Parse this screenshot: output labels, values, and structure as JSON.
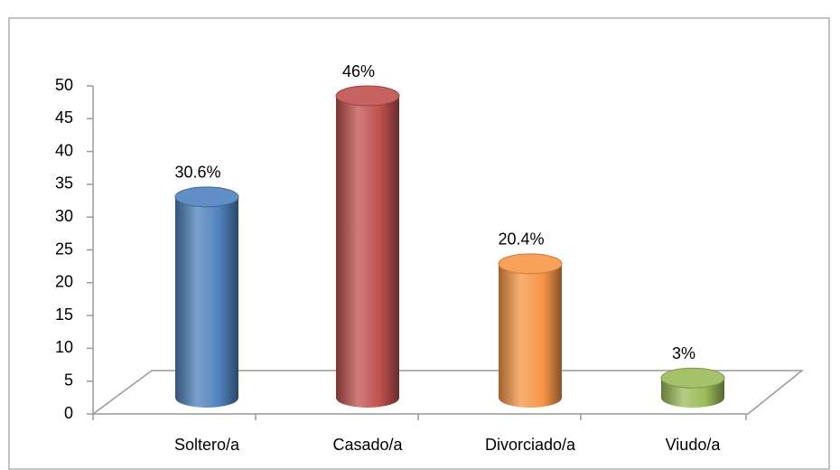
{
  "chart_data": {
    "type": "bar",
    "categories": [
      "Soltero/a",
      "Casado/a",
      "Divorciado/a",
      "Viudo/a"
    ],
    "values": [
      30.6,
      46,
      20.4,
      3
    ],
    "value_labels": [
      "30.6%",
      "46%",
      "20.4%",
      "3%"
    ],
    "colors": [
      "#4f81bd",
      "#c0504d",
      "#f79646",
      "#9bbb59"
    ],
    "ylim": [
      0,
      50
    ],
    "yticks": [
      0,
      5,
      10,
      15,
      20,
      25,
      30,
      35,
      40,
      45,
      50
    ]
  }
}
